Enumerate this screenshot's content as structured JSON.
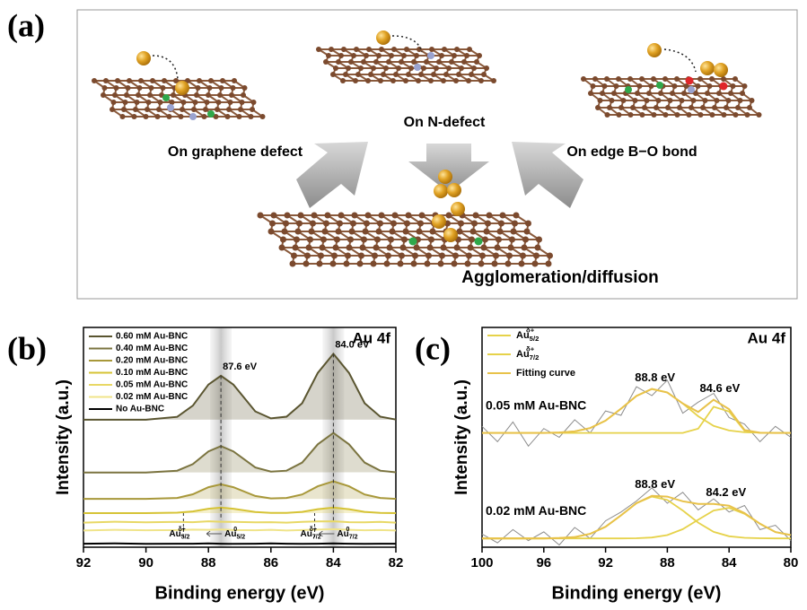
{
  "figure_labels": [
    "(a)",
    "(b)",
    "(c)"
  ],
  "schematic": {
    "labels": [
      "On graphene defect",
      "On N-defect",
      "On edge B−O bond"
    ],
    "result": "Agglomeration/diffusion"
  },
  "chart_data": [
    {
      "type": "line",
      "annotation": "Au 4f",
      "xlabel": "Binding energy (eV)",
      "ylabel": "Intensity (a.u.)",
      "xlim": [
        92,
        82
      ],
      "xticks": [
        92,
        90,
        88,
        86,
        84,
        82
      ],
      "ylim": [
        0,
        100
      ],
      "x": [
        92,
        91,
        90,
        89,
        88.5,
        88,
        87.6,
        87.2,
        86.5,
        86,
        85.5,
        85,
        84.5,
        84,
        83.5,
        83,
        82.5,
        82
      ],
      "series": [
        {
          "name": "0.60 mM Au-BNC",
          "color": "#5a5530",
          "values": [
            58,
            58,
            58,
            59.3,
            64.4,
            74,
            78,
            74,
            61.8,
            58.6,
            59.4,
            65.5,
            79.3,
            88,
            79.3,
            65.5,
            59.4,
            58.1
          ]
        },
        {
          "name": "0.40 mM Au-BNC",
          "color": "#7b7440",
          "values": [
            34,
            34,
            34,
            34.8,
            37.8,
            43.6,
            46,
            43.6,
            36.3,
            34.4,
            34.8,
            38.5,
            46.8,
            52,
            46.8,
            38.5,
            34.8,
            34.1
          ]
        },
        {
          "name": "0.20 mM Au-BNC",
          "color": "#a8983a",
          "values": [
            22,
            22,
            22,
            22.4,
            24.1,
            27.3,
            28.6,
            27.3,
            23.3,
            22.2,
            22.4,
            24,
            27.7,
            30,
            27.7,
            24,
            22.4,
            22
          ]
        },
        {
          "name": "0.10 mM Au-BNC",
          "color": "#d6c336",
          "values": [
            15.5,
            15.5,
            15.5,
            15.7,
            16.3,
            17.5,
            18,
            17.5,
            16,
            15.6,
            15.6,
            16.1,
            17.3,
            18,
            17.3,
            16.1,
            15.6,
            15.5
          ]
        },
        {
          "name": "0.05 mM Au-BNC",
          "color": "#e8d865",
          "values": [
            11.2,
            11.6,
            11.3,
            11.5,
            11.4,
            11.8,
            11.6,
            11.5,
            11.3,
            11.4,
            11.2,
            11.5,
            11.7,
            11.8,
            11.4,
            11.3,
            11.5,
            11.2
          ]
        },
        {
          "name": "0.02 mM Au-BNC",
          "color": "#f0e48a",
          "values": [
            7.6,
            7.9,
            7.7,
            7.8,
            8,
            7.9,
            8.1,
            7.8,
            7.7,
            7.9,
            7.6,
            7.8,
            8,
            8.2,
            7.9,
            7.7,
            7.8,
            7.6
          ]
        },
        {
          "name": "No Au-BNC",
          "color": "#000000",
          "values": [
            1.6,
            1.7,
            1.5,
            1.6,
            1.6,
            1.7,
            1.6,
            1.5,
            1.6,
            1.7,
            1.6,
            1.5,
            1.6,
            1.7,
            1.6,
            1.5,
            1.6,
            1.6
          ]
        }
      ],
      "peaks": [
        {
          "value": 87.6,
          "label": "87.6 eV"
        },
        {
          "value": 84,
          "label": "84.0 eV"
        }
      ],
      "reference_lines": [
        88.8,
        84.6
      ],
      "shift_labels": [
        {
          "base": "Au",
          "sub": "5/2",
          "sup": "δ+"
        },
        {
          "base": "Au",
          "sub": "5/2",
          "sup": "0"
        },
        {
          "base": "Au",
          "sub": "7/2",
          "sup": "δ+"
        },
        {
          "base": "Au",
          "sub": "7/2",
          "sup": "0"
        }
      ]
    },
    {
      "type": "line",
      "annotation": "Au 4f",
      "xlabel": "Binding energy (eV)",
      "ylabel": "Intensity (a.u.)",
      "xlim": [
        100,
        80
      ],
      "xticks": [
        100,
        96,
        92,
        88,
        84,
        80
      ],
      "ylim": [
        0,
        100
      ],
      "legend": [
        {
          "base": "Au",
          "sub": "5/2",
          "sup": "δ+",
          "color": "#e6d24a"
        },
        {
          "base": "Au",
          "sub": "7/2",
          "sup": "δ+",
          "color": "#e6d24a"
        },
        {
          "name": "Fitting curve",
          "color": "#e8c24a"
        }
      ],
      "x": [
        100,
        99,
        98,
        97,
        96,
        95,
        94,
        93,
        92,
        91,
        90,
        89,
        88,
        87,
        86,
        85,
        84,
        83,
        82,
        81,
        80
      ],
      "spectra": [
        {
          "label": "0.05 mM Au-BNC",
          "raw": [
            55,
            48,
            57,
            46,
            54,
            50,
            58,
            52,
            62,
            60,
            73,
            69,
            76,
            61,
            66,
            70,
            59,
            56,
            48,
            55,
            50
          ],
          "au52": [
            52,
            52,
            52,
            52,
            52,
            52.2,
            52.7,
            54.2,
            57.6,
            63,
            68.8,
            72,
            70.4,
            65.4,
            59.6,
            55.2,
            53.1,
            52.3,
            52.1,
            52,
            52
          ],
          "au72": [
            52,
            52,
            52,
            52,
            52,
            52,
            52,
            52,
            52,
            52,
            52,
            52,
            52,
            52,
            53.9,
            63.9,
            61.7,
            53,
            52,
            52,
            52
          ],
          "fit": [
            52,
            52,
            52,
            52,
            52,
            52.2,
            52.7,
            54.2,
            57.6,
            63,
            68.8,
            72,
            70.4,
            65.4,
            61.5,
            67.1,
            62.8,
            53.3,
            52.1,
            52,
            52
          ],
          "peaks": [
            {
              "value": 88.8,
              "label": "88.8 eV"
            },
            {
              "value": 84.6,
              "label": "84.6 eV"
            }
          ]
        },
        {
          "label": "0.02 mM Au-BNC",
          "raw": [
            6,
            2,
            8,
            3,
            7,
            1,
            9,
            4,
            12,
            16,
            21,
            27,
            20,
            25,
            17,
            22,
            16,
            19,
            8,
            10,
            3
          ],
          "au52": [
            4,
            4,
            4,
            4,
            4,
            4.2,
            4.6,
            6.1,
            9.3,
            14.5,
            20,
            23,
            21.5,
            16.7,
            11.2,
            7,
            5,
            4.3,
            4.1,
            4,
            4
          ],
          "au72": [
            4,
            4,
            4,
            4,
            4,
            4,
            4,
            4,
            4,
            4,
            4.1,
            4.4,
            5.5,
            8.2,
            12.5,
            16.7,
            17.9,
            15.2,
            10.6,
            6.9,
            5.5
          ],
          "fit": [
            4,
            4,
            4,
            4,
            4,
            4.2,
            4.6,
            6.1,
            9.3,
            14.5,
            20.1,
            23.4,
            23,
            20.9,
            19.7,
            19.7,
            18.9,
            15.5,
            10.7,
            6.9,
            5.5
          ],
          "peaks": [
            {
              "value": 88.8,
              "label": "88.8 eV"
            },
            {
              "value": 84.2,
              "label": "84.2 eV"
            }
          ]
        }
      ]
    }
  ]
}
